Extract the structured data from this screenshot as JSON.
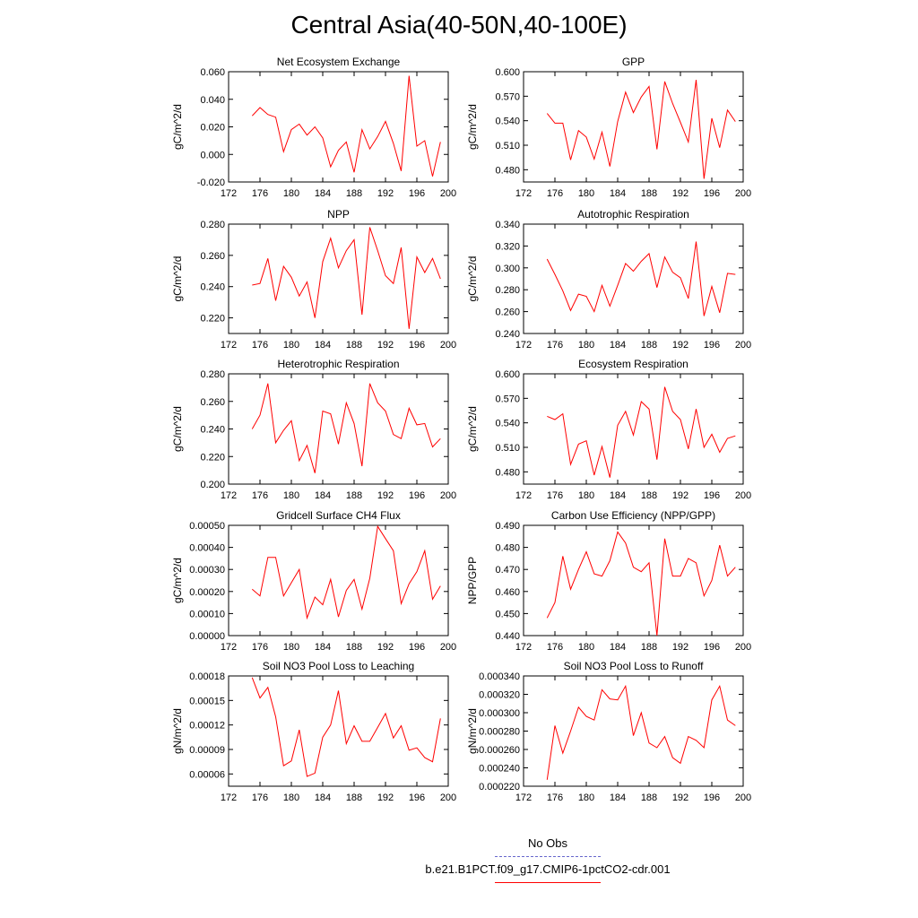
{
  "page": {
    "title": "Central Asia(40-50N,40-100E)"
  },
  "legend": {
    "entries": [
      {
        "label": "No Obs",
        "color": "#6666cc",
        "style": "dashed"
      },
      {
        "label": "b.e21.B1PCT.f09_g17.CMIP6-1pctCO2-cdr.001",
        "color": "#ff0000",
        "style": "solid"
      }
    ]
  },
  "chart_data": [
    {
      "type": "line",
      "title": "Net Ecosystem Exchange",
      "xlabel": "",
      "ylabel": "gC/m^2/d",
      "xlim": [
        172,
        200
      ],
      "ylim": [
        -0.02,
        0.06
      ],
      "xticks": [
        172,
        176,
        180,
        184,
        188,
        192,
        196,
        200
      ],
      "yticks": [
        -0.02,
        0.0,
        0.02,
        0.04,
        0.06
      ],
      "tick_labels": [
        "-0.020",
        "0.000",
        "0.020",
        "0.040",
        "0.060"
      ],
      "series": [
        {
          "color": "#ff0000",
          "x": [
            175,
            176,
            177,
            178,
            179,
            180,
            181,
            182,
            183,
            184,
            185,
            186,
            187,
            188,
            189,
            190,
            191,
            192,
            193,
            194,
            195,
            196,
            197,
            198,
            199
          ],
          "y": [
            0.028,
            0.034,
            0.029,
            0.027,
            0.002,
            0.018,
            0.022,
            0.014,
            0.02,
            0.012,
            -0.009,
            0.003,
            0.009,
            -0.013,
            0.018,
            0.004,
            0.013,
            0.024,
            0.008,
            -0.012,
            0.057,
            0.006,
            0.01,
            -0.016,
            0.009
          ]
        }
      ]
    },
    {
      "type": "line",
      "title": "GPP",
      "xlabel": "",
      "ylabel": "gC/m^2/d",
      "xlim": [
        172,
        200
      ],
      "ylim": [
        0.465,
        0.6
      ],
      "xticks": [
        172,
        176,
        180,
        184,
        188,
        192,
        196,
        200
      ],
      "yticks": [
        0.48,
        0.51,
        0.54,
        0.57,
        0.6
      ],
      "tick_labels": [
        "0.480",
        "0.510",
        "0.540",
        "0.570",
        "0.600"
      ],
      "series": [
        {
          "color": "#ff0000",
          "x": [
            175,
            176,
            177,
            178,
            179,
            180,
            181,
            182,
            183,
            184,
            185,
            186,
            187,
            188,
            189,
            190,
            191,
            192,
            193,
            194,
            195,
            196,
            197,
            198,
            199
          ],
          "y": [
            0.549,
            0.537,
            0.537,
            0.492,
            0.528,
            0.52,
            0.493,
            0.526,
            0.484,
            0.539,
            0.575,
            0.55,
            0.569,
            0.582,
            0.505,
            0.588,
            0.561,
            0.538,
            0.514,
            0.59,
            0.469,
            0.543,
            0.507,
            0.553,
            0.539
          ]
        }
      ]
    },
    {
      "type": "line",
      "title": "NPP",
      "xlabel": "",
      "ylabel": "gC/m^2/d",
      "xlim": [
        172,
        200
      ],
      "ylim": [
        0.21,
        0.28
      ],
      "xticks": [
        172,
        176,
        180,
        184,
        188,
        192,
        196,
        200
      ],
      "yticks": [
        0.22,
        0.24,
        0.26,
        0.28
      ],
      "tick_labels": [
        "0.220",
        "0.240",
        "0.260",
        "0.280"
      ],
      "series": [
        {
          "color": "#ff0000",
          "x": [
            175,
            176,
            177,
            178,
            179,
            180,
            181,
            182,
            183,
            184,
            185,
            186,
            187,
            188,
            189,
            190,
            191,
            192,
            193,
            194,
            195,
            196,
            197,
            198,
            199
          ],
          "y": [
            0.241,
            0.242,
            0.258,
            0.231,
            0.253,
            0.246,
            0.234,
            0.243,
            0.22,
            0.256,
            0.271,
            0.252,
            0.263,
            0.27,
            0.222,
            0.278,
            0.263,
            0.247,
            0.242,
            0.265,
            0.213,
            0.259,
            0.249,
            0.258,
            0.245
          ]
        }
      ]
    },
    {
      "type": "line",
      "title": "Autotrophic Respiration",
      "xlabel": "",
      "ylabel": "gC/m^2/d",
      "xlim": [
        172,
        200
      ],
      "ylim": [
        0.24,
        0.34
      ],
      "xticks": [
        172,
        176,
        180,
        184,
        188,
        192,
        196,
        200
      ],
      "yticks": [
        0.24,
        0.26,
        0.28,
        0.3,
        0.32,
        0.34
      ],
      "tick_labels": [
        "0.240",
        "0.260",
        "0.280",
        "0.300",
        "0.320",
        "0.340"
      ],
      "series": [
        {
          "color": "#ff0000",
          "x": [
            175,
            176,
            177,
            178,
            179,
            180,
            181,
            182,
            183,
            184,
            185,
            186,
            187,
            188,
            189,
            190,
            191,
            192,
            193,
            194,
            195,
            196,
            197,
            198,
            199
          ],
          "y": [
            0.308,
            0.294,
            0.279,
            0.261,
            0.276,
            0.274,
            0.26,
            0.284,
            0.265,
            0.284,
            0.304,
            0.297,
            0.306,
            0.313,
            0.282,
            0.31,
            0.296,
            0.291,
            0.272,
            0.324,
            0.256,
            0.283,
            0.259,
            0.295,
            0.294
          ]
        }
      ]
    },
    {
      "type": "line",
      "title": "Heterotrophic Respiration",
      "xlabel": "",
      "ylabel": "gC/m^2/d",
      "xlim": [
        172,
        200
      ],
      "ylim": [
        0.2,
        0.28
      ],
      "xticks": [
        172,
        176,
        180,
        184,
        188,
        192,
        196,
        200
      ],
      "yticks": [
        0.2,
        0.22,
        0.24,
        0.26,
        0.28
      ],
      "tick_labels": [
        "0.200",
        "0.220",
        "0.240",
        "0.260",
        "0.280"
      ],
      "series": [
        {
          "color": "#ff0000",
          "x": [
            175,
            176,
            177,
            178,
            179,
            180,
            181,
            182,
            183,
            184,
            185,
            186,
            187,
            188,
            189,
            190,
            191,
            192,
            193,
            194,
            195,
            196,
            197,
            198,
            199
          ],
          "y": [
            0.24,
            0.25,
            0.273,
            0.23,
            0.239,
            0.246,
            0.217,
            0.228,
            0.208,
            0.253,
            0.251,
            0.229,
            0.259,
            0.244,
            0.213,
            0.273,
            0.259,
            0.253,
            0.236,
            0.233,
            0.255,
            0.243,
            0.244,
            0.227,
            0.233
          ]
        }
      ]
    },
    {
      "type": "line",
      "title": "Ecosystem Respiration",
      "xlabel": "",
      "ylabel": "gC/m^2/d",
      "xlim": [
        172,
        200
      ],
      "ylim": [
        0.465,
        0.6
      ],
      "xticks": [
        172,
        176,
        180,
        184,
        188,
        192,
        196,
        200
      ],
      "yticks": [
        0.48,
        0.51,
        0.54,
        0.57,
        0.6
      ],
      "tick_labels": [
        "0.480",
        "0.510",
        "0.540",
        "0.570",
        "0.600"
      ],
      "series": [
        {
          "color": "#ff0000",
          "x": [
            175,
            176,
            177,
            178,
            179,
            180,
            181,
            182,
            183,
            184,
            185,
            186,
            187,
            188,
            189,
            190,
            191,
            192,
            193,
            194,
            195,
            196,
            197,
            198,
            199
          ],
          "y": [
            0.548,
            0.544,
            0.551,
            0.489,
            0.514,
            0.518,
            0.476,
            0.511,
            0.473,
            0.537,
            0.554,
            0.525,
            0.566,
            0.557,
            0.495,
            0.584,
            0.554,
            0.544,
            0.508,
            0.557,
            0.51,
            0.526,
            0.504,
            0.521,
            0.524
          ]
        }
      ]
    },
    {
      "type": "line",
      "title": "Gridcell Surface CH4 Flux",
      "xlabel": "",
      "ylabel": "gC/m^2/d",
      "xlim": [
        172,
        200
      ],
      "ylim": [
        0.0,
        0.0005
      ],
      "xticks": [
        172,
        176,
        180,
        184,
        188,
        192,
        196,
        200
      ],
      "yticks": [
        0.0,
        0.0001,
        0.0002,
        0.0003,
        0.0004,
        0.0005
      ],
      "tick_labels": [
        "0.00000",
        "0.00010",
        "0.00020",
        "0.00030",
        "0.00040",
        "0.00050"
      ],
      "series": [
        {
          "color": "#ff0000",
          "x": [
            175,
            176,
            177,
            178,
            179,
            180,
            181,
            182,
            183,
            184,
            185,
            186,
            187,
            188,
            189,
            190,
            191,
            192,
            193,
            194,
            195,
            196,
            197,
            198,
            199
          ],
          "y": [
            0.00021,
            0.00018,
            0.000355,
            0.000355,
            0.00018,
            0.00024,
            0.0003,
            8e-05,
            0.000175,
            0.00014,
            0.000255,
            8.5e-05,
            0.000205,
            0.000255,
            0.00012,
            0.00026,
            0.000495,
            0.00044,
            0.000385,
            0.000145,
            0.000235,
            0.00029,
            0.000385,
            0.000165,
            0.000225
          ]
        }
      ]
    },
    {
      "type": "line",
      "title": "Carbon Use Efficiency (NPP/GPP)",
      "xlabel": "",
      "ylabel": "NPP/GPP",
      "xlim": [
        172,
        200
      ],
      "ylim": [
        0.44,
        0.49
      ],
      "xticks": [
        172,
        176,
        180,
        184,
        188,
        192,
        196,
        200
      ],
      "yticks": [
        0.44,
        0.45,
        0.46,
        0.47,
        0.48,
        0.49
      ],
      "tick_labels": [
        "0.440",
        "0.450",
        "0.460",
        "0.470",
        "0.480",
        "0.490"
      ],
      "series": [
        {
          "color": "#ff0000",
          "x": [
            175,
            176,
            177,
            178,
            179,
            180,
            181,
            182,
            183,
            184,
            185,
            186,
            187,
            188,
            189,
            190,
            191,
            192,
            193,
            194,
            195,
            196,
            197,
            198,
            199
          ],
          "y": [
            0.448,
            0.455,
            0.476,
            0.461,
            0.47,
            0.478,
            0.468,
            0.467,
            0.474,
            0.487,
            0.482,
            0.471,
            0.469,
            0.473,
            0.44,
            0.484,
            0.467,
            0.467,
            0.475,
            0.473,
            0.458,
            0.465,
            0.481,
            0.467,
            0.471
          ]
        }
      ]
    },
    {
      "type": "line",
      "title": "Soil NO3 Pool Loss to Leaching",
      "xlabel": "",
      "ylabel": "gN/m^2/d",
      "xlim": [
        172,
        200
      ],
      "ylim": [
        4.5e-05,
        0.00018
      ],
      "xticks": [
        172,
        176,
        180,
        184,
        188,
        192,
        196,
        200
      ],
      "yticks": [
        6e-05,
        9e-05,
        0.00012,
        0.00015,
        0.00018
      ],
      "tick_labels": [
        "0.00006",
        "0.00009",
        "0.00012",
        "0.00015",
        "0.00018"
      ],
      "series": [
        {
          "color": "#ff0000",
          "x": [
            175,
            176,
            177,
            178,
            179,
            180,
            181,
            182,
            183,
            184,
            185,
            186,
            187,
            188,
            189,
            190,
            191,
            192,
            193,
            194,
            195,
            196,
            197,
            198,
            199
          ],
          "y": [
            0.000178,
            0.000153,
            0.000166,
            0.00013,
            7e-05,
            7.6e-05,
            0.000114,
            5.7e-05,
            6.1e-05,
            0.000105,
            0.00012,
            0.000162,
            9.7e-05,
            0.000119,
            0.0001,
            0.0001,
            0.000117,
            0.000134,
            0.000104,
            0.000119,
            8.9e-05,
            9.2e-05,
            8e-05,
            7.5e-05,
            0.000128
          ]
        }
      ]
    },
    {
      "type": "line",
      "title": "Soil NO3 Pool Loss to Runoff",
      "xlabel": "",
      "ylabel": "gN/m^2/d",
      "xlim": [
        172,
        200
      ],
      "ylim": [
        0.00022,
        0.00034
      ],
      "xticks": [
        172,
        176,
        180,
        184,
        188,
        192,
        196,
        200
      ],
      "yticks": [
        0.00022,
        0.00024,
        0.00026,
        0.00028,
        0.0003,
        0.00032,
        0.00034
      ],
      "tick_labels": [
        "0.000220",
        "0.000240",
        "0.000260",
        "0.000280",
        "0.000300",
        "0.000320",
        "0.000340"
      ],
      "series": [
        {
          "color": "#ff0000",
          "x": [
            175,
            176,
            177,
            178,
            179,
            180,
            181,
            182,
            183,
            184,
            185,
            186,
            187,
            188,
            189,
            190,
            191,
            192,
            193,
            194,
            195,
            196,
            197,
            198,
            199
          ],
          "y": [
            0.000227,
            0.000286,
            0.000256,
            0.00028,
            0.000306,
            0.000296,
            0.000292,
            0.000325,
            0.000315,
            0.000314,
            0.000329,
            0.000275,
            0.0003,
            0.000267,
            0.000262,
            0.000274,
            0.000251,
            0.000245,
            0.000274,
            0.00027,
            0.000262,
            0.000314,
            0.000329,
            0.000292,
            0.000286
          ]
        }
      ]
    }
  ]
}
